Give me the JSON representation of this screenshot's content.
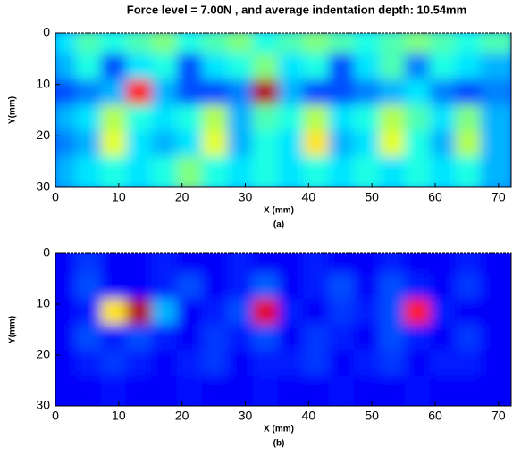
{
  "chart_data": [
    {
      "type": "heatmap",
      "title": "Force level = 7.00N , and average indentation depth:  10.54mm",
      "caption": "(a)",
      "xlabel": "X (mm)",
      "ylabel": "Y(mm)",
      "xlim": [
        0,
        72
      ],
      "ylim": [
        0,
        30
      ],
      "y_inverted": true,
      "xticks": [
        0,
        10,
        20,
        30,
        40,
        50,
        60,
        70
      ],
      "yticks": [
        0,
        10,
        20,
        30
      ],
      "colormap": "jet",
      "clim": [
        0,
        1
      ],
      "x": [
        2,
        6,
        10,
        14,
        18,
        22,
        26,
        30,
        34,
        38,
        42,
        46,
        50,
        54,
        58,
        62,
        66,
        70
      ],
      "y": [
        2.5,
        7.5,
        12.5,
        17.5,
        22.5,
        27.5
      ],
      "values": [
        [
          0.35,
          0.45,
          0.4,
          0.45,
          0.5,
          0.4,
          0.45,
          0.5,
          0.4,
          0.45,
          0.5,
          0.45,
          0.4,
          0.45,
          0.5,
          0.45,
          0.4,
          0.45
        ],
        [
          0.3,
          0.4,
          0.2,
          0.35,
          0.4,
          0.2,
          0.35,
          0.4,
          0.5,
          0.35,
          0.4,
          0.2,
          0.35,
          0.45,
          0.25,
          0.4,
          0.35,
          0.3
        ],
        [
          0.2,
          0.25,
          0.3,
          0.85,
          0.3,
          0.2,
          0.2,
          0.25,
          0.95,
          0.3,
          0.2,
          0.2,
          0.25,
          0.3,
          0.35,
          0.25,
          0.2,
          0.25
        ],
        [
          0.3,
          0.35,
          0.55,
          0.4,
          0.35,
          0.4,
          0.55,
          0.3,
          0.45,
          0.4,
          0.55,
          0.35,
          0.4,
          0.55,
          0.45,
          0.35,
          0.5,
          0.3
        ],
        [
          0.25,
          0.3,
          0.6,
          0.35,
          0.3,
          0.35,
          0.6,
          0.3,
          0.4,
          0.35,
          0.65,
          0.3,
          0.35,
          0.6,
          0.4,
          0.3,
          0.55,
          0.3
        ],
        [
          0.3,
          0.35,
          0.4,
          0.35,
          0.4,
          0.5,
          0.4,
          0.35,
          0.4,
          0.35,
          0.4,
          0.35,
          0.4,
          0.35,
          0.4,
          0.35,
          0.4,
          0.3
        ]
      ]
    },
    {
      "type": "heatmap",
      "caption": "(b)",
      "xlabel": "X (mm)",
      "ylabel": "Y(mm)",
      "xlim": [
        0,
        72
      ],
      "ylim": [
        0,
        30
      ],
      "y_inverted": true,
      "xticks": [
        0,
        10,
        20,
        30,
        40,
        50,
        60,
        70
      ],
      "yticks": [
        0,
        10,
        20,
        30
      ],
      "colormap": "jet",
      "clim": [
        0,
        1
      ],
      "x": [
        2,
        6,
        10,
        14,
        18,
        22,
        26,
        30,
        34,
        38,
        42,
        46,
        50,
        54,
        58,
        62,
        66,
        70
      ],
      "y": [
        2.5,
        7.5,
        12.5,
        17.5,
        22.5,
        27.5
      ],
      "values": [
        [
          0.12,
          0.18,
          0.12,
          0.12,
          0.15,
          0.12,
          0.12,
          0.15,
          0.12,
          0.12,
          0.15,
          0.12,
          0.12,
          0.15,
          0.12,
          0.12,
          0.15,
          0.12
        ],
        [
          0.12,
          0.2,
          0.12,
          0.12,
          0.15,
          0.2,
          0.12,
          0.15,
          0.22,
          0.12,
          0.15,
          0.2,
          0.12,
          0.2,
          0.15,
          0.12,
          0.18,
          0.12
        ],
        [
          0.12,
          0.15,
          0.65,
          0.95,
          0.3,
          0.12,
          0.15,
          0.2,
          0.9,
          0.15,
          0.12,
          0.18,
          0.15,
          0.2,
          0.85,
          0.15,
          0.12,
          0.12
        ],
        [
          0.12,
          0.2,
          0.15,
          0.2,
          0.15,
          0.12,
          0.18,
          0.15,
          0.2,
          0.12,
          0.18,
          0.15,
          0.12,
          0.2,
          0.15,
          0.12,
          0.18,
          0.12
        ],
        [
          0.12,
          0.15,
          0.18,
          0.15,
          0.12,
          0.15,
          0.18,
          0.12,
          0.15,
          0.15,
          0.18,
          0.12,
          0.15,
          0.18,
          0.12,
          0.15,
          0.15,
          0.12
        ],
        [
          0.12,
          0.12,
          0.14,
          0.12,
          0.12,
          0.14,
          0.12,
          0.12,
          0.14,
          0.12,
          0.12,
          0.14,
          0.12,
          0.12,
          0.14,
          0.12,
          0.12,
          0.12
        ]
      ]
    }
  ]
}
